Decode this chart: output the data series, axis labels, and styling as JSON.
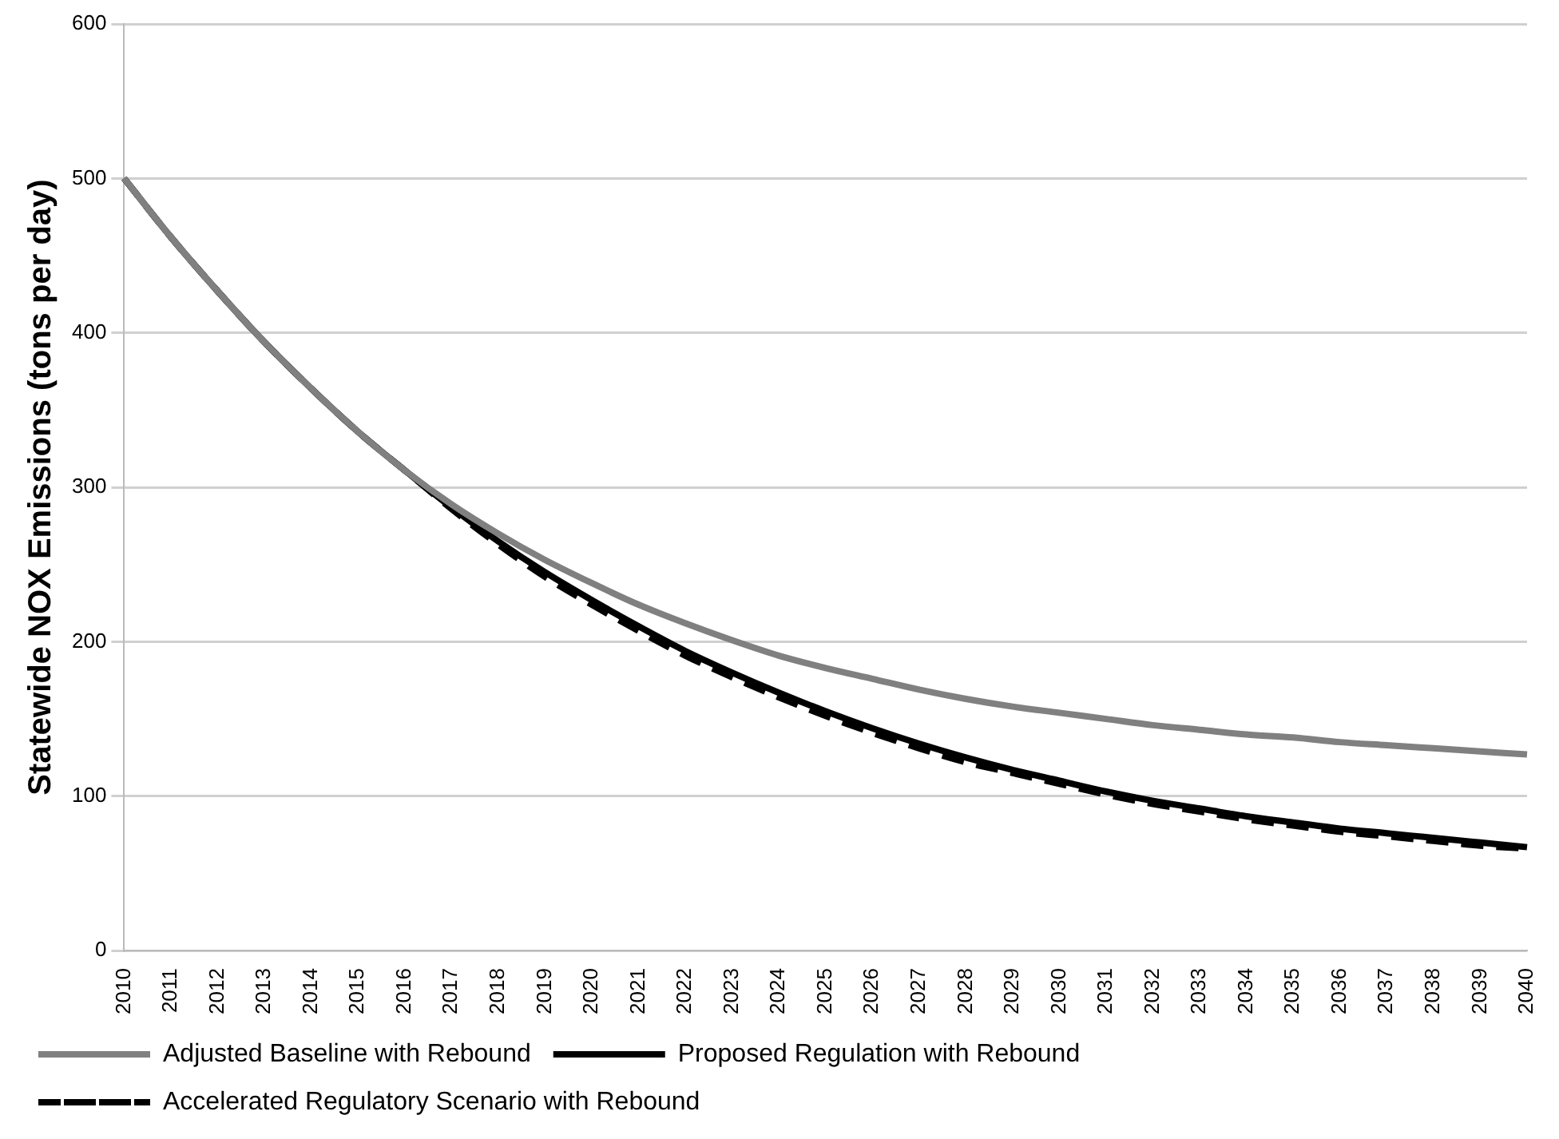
{
  "chart_data": {
    "type": "line",
    "ylabel": "Statewide NOX Emissions (tons per day)",
    "categories": [
      "2010",
      "2011",
      "2012",
      "2013",
      "2014",
      "2015",
      "2016",
      "2017",
      "2018",
      "2019",
      "2020",
      "2021",
      "2022",
      "2023",
      "2024",
      "2025",
      "2026",
      "2027",
      "2028",
      "2029",
      "2030",
      "2031",
      "2032",
      "2033",
      "2034",
      "2035",
      "2036",
      "2037",
      "2038",
      "2039",
      "2040"
    ],
    "ylim": [
      0,
      600
    ],
    "yticks": [
      0,
      100,
      200,
      300,
      400,
      500,
      600
    ],
    "grid": "y",
    "legend": "bottom",
    "marker": "none",
    "series": [
      {
        "name": "Adjusted Baseline with Rebound",
        "color": "#808080",
        "line_style": "solid",
        "values": [
          500,
          462,
          427,
          394,
          364,
          336,
          311,
          289,
          270,
          253,
          238,
          224,
          212,
          201,
          191,
          183,
          176,
          169,
          163,
          158,
          154,
          150,
          146,
          143,
          140,
          138,
          135,
          133,
          131,
          129,
          127
        ]
      },
      {
        "name": "Proposed Regulation with Rebound",
        "color": "#000000",
        "line_style": "solid",
        "values": [
          500,
          462,
          427,
          394,
          364,
          336,
          311,
          287,
          265,
          245,
          227,
          210,
          194,
          180,
          167,
          155,
          144,
          134,
          125,
          117,
          110,
          103,
          97,
          92,
          87,
          83,
          79,
          76,
          73,
          70,
          67
        ]
      },
      {
        "name": "Accelerated Regulatory Scenario with Rebound",
        "color": "#000000",
        "line_style": "dashed",
        "values": [
          500,
          462,
          427,
          394,
          364,
          336,
          311,
          286,
          263,
          242,
          224,
          207,
          191,
          177,
          164,
          152,
          141,
          131,
          122,
          115,
          108,
          101,
          95,
          90,
          85,
          81,
          77,
          74,
          71,
          68,
          66
        ]
      }
    ]
  }
}
